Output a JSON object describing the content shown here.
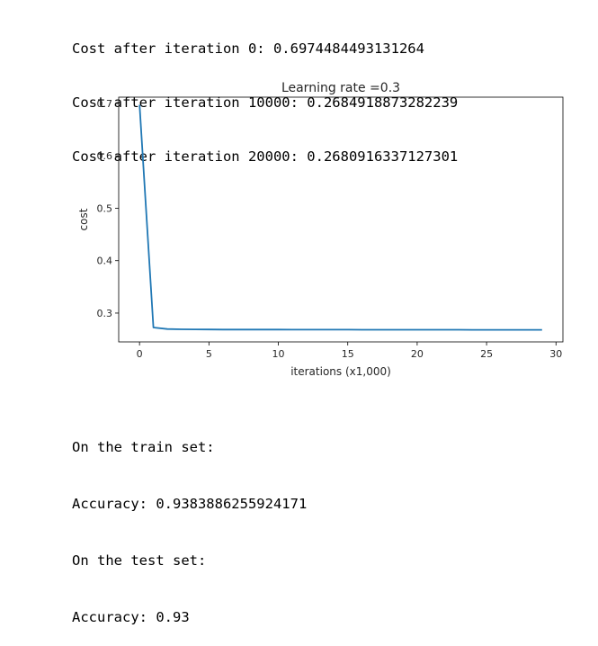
{
  "output_top": [
    "Cost after iteration 0: 0.6974484493131264",
    "Cost after iteration 10000: 0.2684918873282239",
    "Cost after iteration 20000: 0.2680916337127301"
  ],
  "output_bottom": [
    "On the train set:",
    "Accuracy: 0.9383886255924171",
    "On the test set:",
    "Accuracy: 0.93"
  ],
  "chart_data": {
    "type": "line",
    "title": "Learning rate =0.3",
    "xlabel": "iterations (x1,000)",
    "ylabel": "cost",
    "xlim": [
      -1.5,
      30.5
    ],
    "ylim": [
      0.245,
      0.712
    ],
    "xticks": [
      0,
      5,
      10,
      15,
      20,
      25,
      30
    ],
    "yticks": [
      0.3,
      0.4,
      0.5,
      0.6,
      0.7
    ],
    "ytick_labels": [
      "0.3",
      "0.4",
      "0.5",
      "0.6",
      "0.7"
    ],
    "grid": false,
    "line_color": "#1f77b4",
    "series": [
      {
        "x": [
          0,
          1,
          2,
          3,
          4,
          5,
          6,
          7,
          8,
          9,
          10,
          11,
          12,
          13,
          14,
          15,
          16,
          17,
          18,
          19,
          20,
          21,
          22,
          23,
          24,
          25,
          26,
          27,
          28,
          29
        ],
        "values": [
          0.6974,
          0.2725,
          0.2695,
          0.269,
          0.2688,
          0.2687,
          0.2686,
          0.2686,
          0.2685,
          0.2685,
          0.2685,
          0.2684,
          0.2684,
          0.2683,
          0.2683,
          0.2683,
          0.2682,
          0.2682,
          0.2682,
          0.2682,
          0.2681,
          0.2681,
          0.2681,
          0.2681,
          0.268,
          0.268,
          0.268,
          0.268,
          0.268,
          0.268
        ]
      }
    ]
  }
}
